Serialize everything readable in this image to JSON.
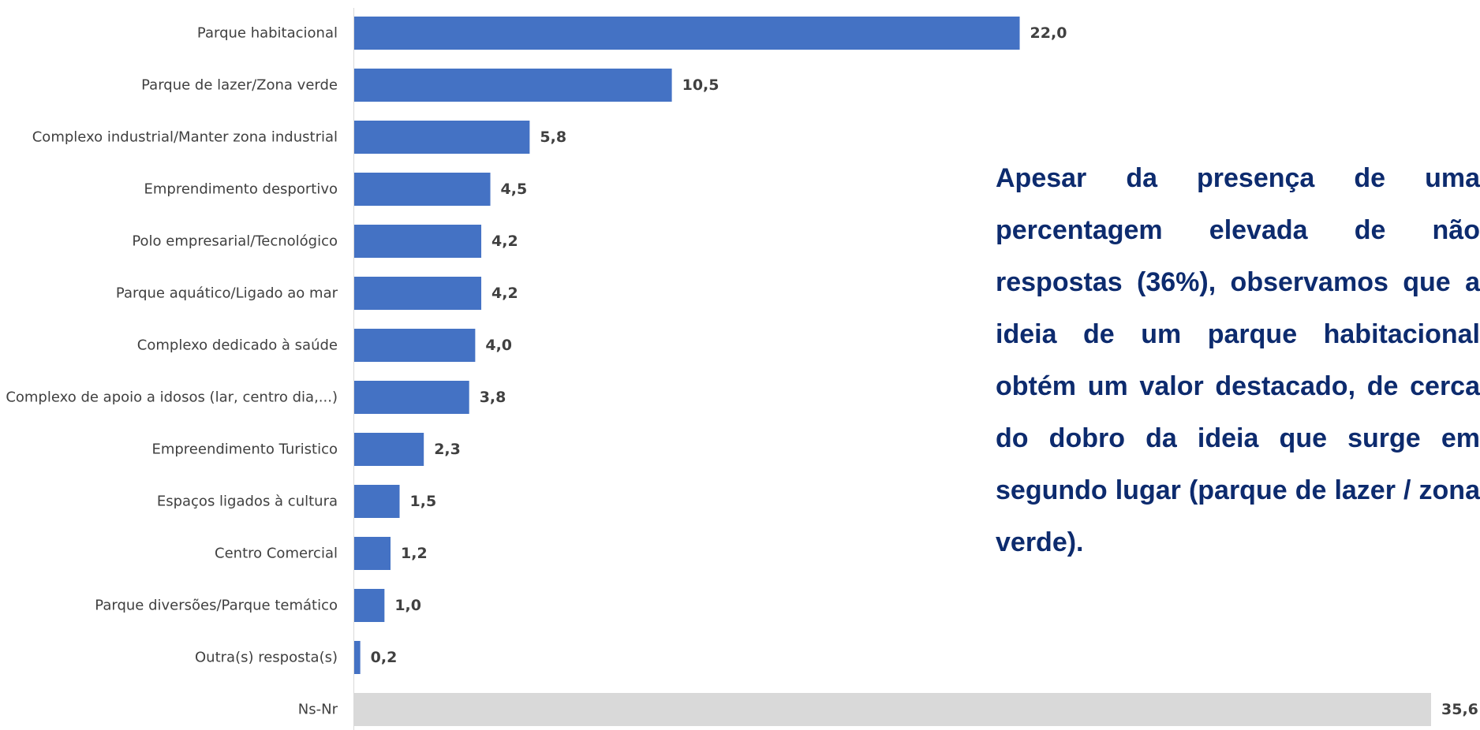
{
  "chart_data": {
    "type": "bar",
    "orientation": "horizontal",
    "categories": [
      "Parque habitacional",
      "Parque de lazer/Zona verde",
      "Complexo industrial/Manter zona industrial",
      "Emprendimento desportivo",
      "Polo empresarial/Tecnológico",
      "Parque aquático/Ligado ao mar",
      "Complexo dedicado à saúde",
      "Complexo de apoio a idosos (lar, centro dia,...)",
      "Empreendimento Turistico",
      "Espaços ligados à cultura",
      "Centro Comercial",
      "Parque diversões/Parque temático",
      "Outra(s) resposta(s)",
      "Ns-Nr"
    ],
    "values": [
      22.0,
      10.5,
      5.8,
      4.5,
      4.2,
      4.2,
      4.0,
      3.8,
      2.3,
      1.5,
      1.2,
      1.0,
      0.2,
      35.6
    ],
    "value_labels": [
      "22,0",
      "10,5",
      "5,8",
      "4,5",
      "4,2",
      "4,2",
      "4,0",
      "3,8",
      "2,3",
      "1,5",
      "1,2",
      "1,0",
      "0,2",
      "35,6"
    ],
    "bar_colors": [
      "#4472c4",
      "#4472c4",
      "#4472c4",
      "#4472c4",
      "#4472c4",
      "#4472c4",
      "#4472c4",
      "#4472c4",
      "#4472c4",
      "#4472c4",
      "#4472c4",
      "#4472c4",
      "#4472c4",
      "#d9d9d9"
    ],
    "xlim": [
      0,
      35.6
    ],
    "grid": false,
    "legend": "none",
    "title": "",
    "xlabel": "",
    "ylabel": ""
  },
  "annotation": {
    "text": "Apesar da presença de uma percentagem elevada de não respostas (36%), observamos que a ideia de um parque habitacional obtém um valor destacado, de cerca do dobro da ideia que surge em segundo lugar (parque de lazer / zona verde).",
    "color": "#0d2b6e"
  }
}
